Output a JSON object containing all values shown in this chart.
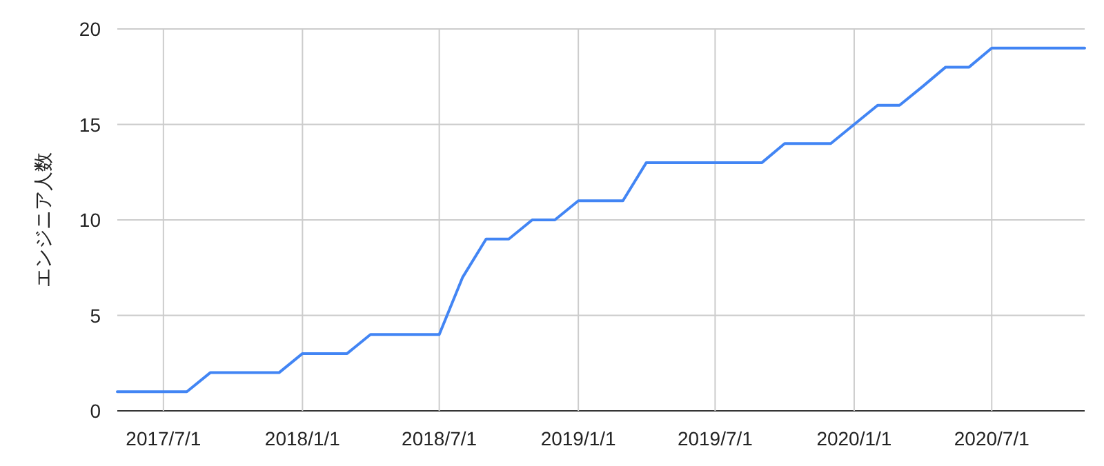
{
  "chart_data": {
    "type": "line",
    "ylabel": "エンジニア人数",
    "x": [
      "2017-05-01",
      "2017-06-01",
      "2017-07-01",
      "2017-08-01",
      "2017-09-01",
      "2017-10-01",
      "2017-11-01",
      "2017-12-01",
      "2018-01-01",
      "2018-02-01",
      "2018-03-01",
      "2018-04-01",
      "2018-05-01",
      "2018-06-01",
      "2018-07-01",
      "2018-08-01",
      "2018-09-01",
      "2018-10-01",
      "2018-11-01",
      "2018-12-01",
      "2019-01-01",
      "2019-02-01",
      "2019-03-01",
      "2019-04-01",
      "2019-05-01",
      "2019-06-01",
      "2019-07-01",
      "2019-08-01",
      "2019-09-01",
      "2019-10-01",
      "2019-11-01",
      "2019-12-01",
      "2020-01-01",
      "2020-02-01",
      "2020-03-01",
      "2020-04-01",
      "2020-05-01",
      "2020-06-01",
      "2020-07-01",
      "2020-08-01",
      "2020-09-01",
      "2020-10-01",
      "2020-11-01"
    ],
    "series": [
      {
        "color": "#4285f4",
        "values": [
          1,
          1,
          1,
          1,
          2,
          2,
          2,
          2,
          3,
          3,
          3,
          4,
          4,
          4,
          4,
          7,
          9,
          9,
          10,
          10,
          11,
          11,
          11,
          13,
          13,
          13,
          13,
          13,
          13,
          14,
          14,
          14,
          15,
          16,
          16,
          17,
          18,
          18,
          19,
          19,
          19,
          19,
          19
        ]
      }
    ],
    "xlim": [
      "2017-05-01",
      "2020-11-01"
    ],
    "xticks": [
      {
        "value": "2017-07-01",
        "label": "2017/7/1"
      },
      {
        "value": "2018-01-01",
        "label": "2018/1/1"
      },
      {
        "value": "2018-07-01",
        "label": "2018/7/1"
      },
      {
        "value": "2019-01-01",
        "label": "2019/1/1"
      },
      {
        "value": "2019-07-01",
        "label": "2019/7/1"
      },
      {
        "value": "2020-01-01",
        "label": "2020/1/1"
      },
      {
        "value": "2020-07-01",
        "label": "2020/7/1"
      }
    ],
    "ylim": [
      0,
      20
    ],
    "yticks": [
      0,
      5,
      10,
      15,
      20
    ],
    "grid": true,
    "marker": "none",
    "line_style": "solid"
  }
}
